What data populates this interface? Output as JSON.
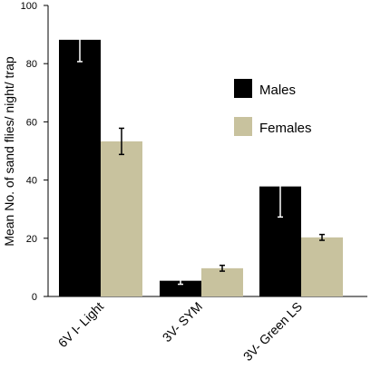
{
  "chart_data": {
    "type": "bar",
    "title": "",
    "xlabel": "",
    "ylabel": "Mean No. of  sand flies/ night/ trap",
    "ylim": [
      0,
      100
    ],
    "yticks": [
      0,
      20,
      40,
      60,
      80,
      100
    ],
    "categories": [
      "6V I- Light",
      "3V- SYM",
      "3V- Green LS"
    ],
    "series": [
      {
        "name": "Males",
        "values": [
          88.2,
          5.4,
          37.8
        ],
        "errors": [
          7.5,
          1.2,
          10.5
        ],
        "color": "#000000"
      },
      {
        "name": "Females",
        "values": [
          53.3,
          9.7,
          20.3
        ],
        "errors": [
          4.5,
          1.0,
          1.0
        ],
        "color": "#c8c29e"
      }
    ],
    "error_bar_colors": [
      "#ffffff",
      "#000000"
    ],
    "legend": "right",
    "grid": false
  }
}
